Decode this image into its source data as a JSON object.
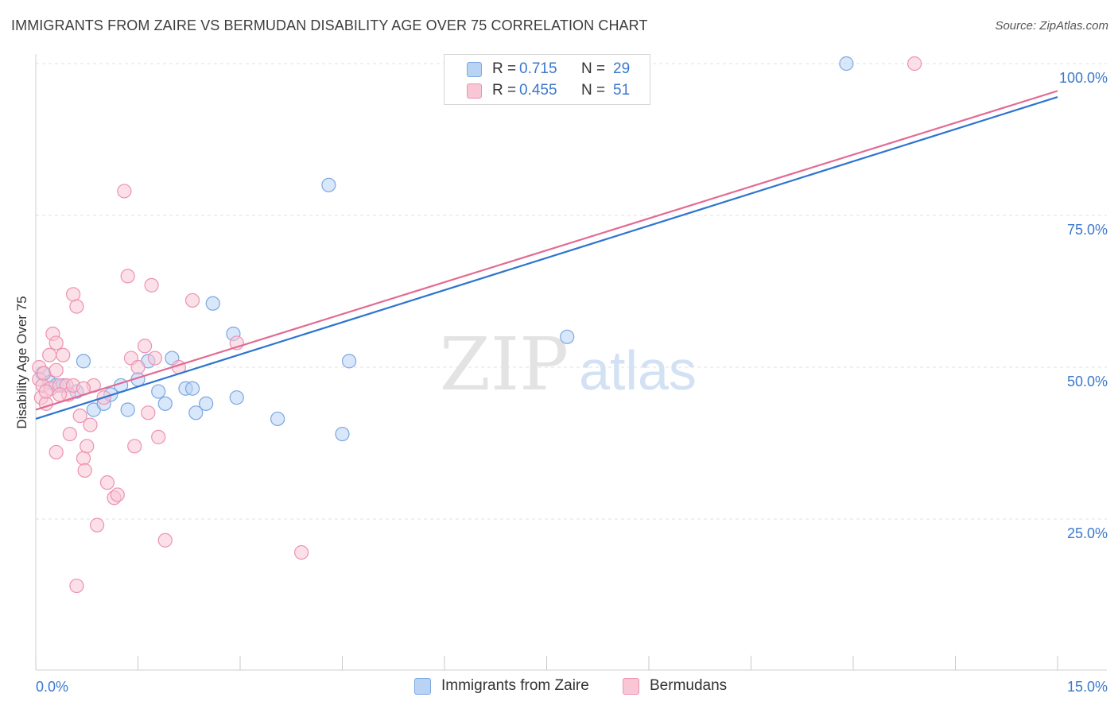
{
  "title": "IMMIGRANTS FROM ZAIRE VS BERMUDAN DISABILITY AGE OVER 75 CORRELATION CHART",
  "source": "Source: ZipAtlas.com",
  "watermark": {
    "zip": "ZIP",
    "atlas": "atlas"
  },
  "legend": {
    "r_label": "R =",
    "n_label": "N =",
    "rows": [
      {
        "r": "0.715",
        "n": "29"
      },
      {
        "r": "0.455",
        "n": "51"
      }
    ]
  },
  "colors": {
    "blue_fill": "#b9d3f5",
    "blue_stroke": "#7ba7e0",
    "blue_line": "#2e74d0",
    "pink_fill": "#f8c6d5",
    "pink_stroke": "#ec92b1",
    "pink_line": "#e26b94",
    "value_text": "#3b78cc"
  },
  "chart_data": {
    "type": "scatter",
    "title": "IMMIGRANTS FROM ZAIRE VS BERMUDAN DISABILITY AGE OVER 75 CORRELATION CHART",
    "xlabel": "",
    "ylabel": "Disability Age Over 75",
    "xlim": [
      0,
      15
    ],
    "ylim": [
      0,
      102
    ],
    "x_tick_labels": [
      "0.0%",
      "15.0%"
    ],
    "y_tick_labels": [
      "100.0%",
      "75.0%",
      "50.0%",
      "25.0%"
    ],
    "y_ticks": [
      100,
      75,
      50,
      25
    ],
    "grid": true,
    "legend_position": "top-center",
    "series": [
      {
        "name": "Immigrants from Zaire",
        "r": 0.715,
        "n": 29,
        "trend": {
          "x": [
            0,
            15
          ],
          "y": [
            41.5,
            94.5
          ]
        },
        "points": [
          [
            0.1,
            49.0
          ],
          [
            0.2,
            47.5
          ],
          [
            0.3,
            47.0
          ],
          [
            0.6,
            46.0
          ],
          [
            0.7,
            51.0
          ],
          [
            0.85,
            43.0
          ],
          [
            1.0,
            44.0
          ],
          [
            1.1,
            45.5
          ],
          [
            1.25,
            47.0
          ],
          [
            1.35,
            43.0
          ],
          [
            1.5,
            48.0
          ],
          [
            1.65,
            51.0
          ],
          [
            1.8,
            46.0
          ],
          [
            1.9,
            44.0
          ],
          [
            2.0,
            51.5
          ],
          [
            2.2,
            46.5
          ],
          [
            2.3,
            46.5
          ],
          [
            2.35,
            42.5
          ],
          [
            2.5,
            44.0
          ],
          [
            2.6,
            60.5
          ],
          [
            2.9,
            55.5
          ],
          [
            2.95,
            45.0
          ],
          [
            3.55,
            41.5
          ],
          [
            4.3,
            80.0
          ],
          [
            4.5,
            39.0
          ],
          [
            4.6,
            51.0
          ],
          [
            7.8,
            55.0
          ],
          [
            11.9,
            100.0
          ],
          [
            0.4,
            47.0
          ]
        ]
      },
      {
        "name": "Bermudans",
        "r": 0.455,
        "n": 51,
        "trend": {
          "x": [
            0,
            15
          ],
          "y": [
            43.0,
            95.5
          ]
        },
        "points": [
          [
            0.05,
            50.0
          ],
          [
            0.05,
            48.0
          ],
          [
            0.08,
            45.0
          ],
          [
            0.1,
            47.0
          ],
          [
            0.12,
            49.0
          ],
          [
            0.15,
            44.0
          ],
          [
            0.2,
            52.0
          ],
          [
            0.22,
            46.5
          ],
          [
            0.25,
            55.5
          ],
          [
            0.3,
            54.0
          ],
          [
            0.3,
            49.5
          ],
          [
            0.35,
            47.0
          ],
          [
            0.4,
            52.0
          ],
          [
            0.45,
            47.0
          ],
          [
            0.48,
            45.5
          ],
          [
            0.5,
            39.0
          ],
          [
            0.55,
            62.0
          ],
          [
            0.6,
            60.0
          ],
          [
            0.65,
            42.0
          ],
          [
            0.7,
            35.0
          ],
          [
            0.72,
            33.0
          ],
          [
            0.75,
            37.0
          ],
          [
            0.8,
            40.5
          ],
          [
            0.85,
            47.0
          ],
          [
            0.3,
            36.0
          ],
          [
            0.6,
            14.0
          ],
          [
            0.9,
            24.0
          ],
          [
            1.0,
            45.0
          ],
          [
            1.05,
            31.0
          ],
          [
            1.15,
            28.5
          ],
          [
            1.2,
            29.0
          ],
          [
            1.3,
            79.0
          ],
          [
            1.35,
            65.0
          ],
          [
            1.4,
            51.5
          ],
          [
            1.45,
            37.0
          ],
          [
            1.5,
            50.0
          ],
          [
            1.6,
            53.5
          ],
          [
            1.65,
            42.5
          ],
          [
            1.7,
            63.5
          ],
          [
            1.75,
            51.5
          ],
          [
            1.8,
            38.5
          ],
          [
            1.9,
            21.5
          ],
          [
            2.1,
            50.0
          ],
          [
            2.3,
            61.0
          ],
          [
            2.95,
            54.0
          ],
          [
            3.9,
            19.5
          ],
          [
            12.9,
            100.0
          ],
          [
            0.35,
            45.5
          ],
          [
            0.55,
            47.0
          ],
          [
            0.7,
            46.5
          ],
          [
            0.15,
            46.0
          ]
        ]
      }
    ]
  }
}
